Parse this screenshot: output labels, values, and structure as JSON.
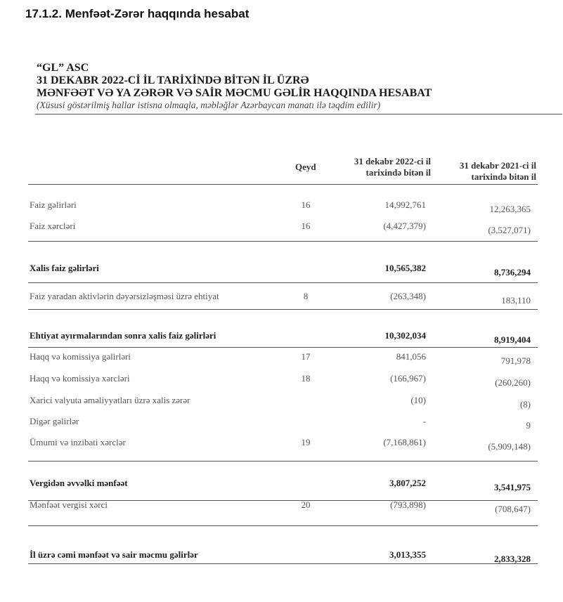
{
  "section_title": "17.1.2. Menfəət-Zərər haqqında hesabat",
  "company": "“GL” ASC",
  "heading_line1": "31 DEKABR 2022-Cİ İL TARİXİNDƏ BİTƏN İL ÜZRƏ",
  "heading_line2": "MƏNFƏƏT VƏ YA ZƏRƏR VƏ SAİR MƏCMU GƏLİR HAQQINDA HESABAT",
  "subtitle": "(Xüsusi göstərilmiş hallar istisna olmaqla, məbləğlər Azərbaycan manatı ilə təqdim edilir)",
  "columns": {
    "note": "Qeyd",
    "y2022_line1": "31 dekabr 2022-ci il",
    "y2022_line2": "tarixində bitən il",
    "y2021_line1": "31 dekabr 2021-ci il",
    "y2021_line2": "tarixində bitən il"
  },
  "rows": [
    {
      "label": "Faiz gəlirləri",
      "note": "16",
      "v2022": "14,992,761",
      "v2021": "12,263,365",
      "bold": false
    },
    {
      "label": "Faiz xərcləri",
      "note": "16",
      "v2022": "(4,427,379)",
      "v2021": "(3,527,071)",
      "bold": false
    },
    {
      "label": "Xalis faiz gəlirləri",
      "note": "",
      "v2022": "10,565,382",
      "v2021": "8,736,294",
      "bold": true
    },
    {
      "label": "Faiz yaradan aktivlərin dəyərsizləşməsi üzrə ehtiyat",
      "note": "8",
      "v2022": "(263,348)",
      "v2021": "183,110",
      "bold": false
    },
    {
      "label": "Ehtiyat ayırmalarından sonra xalis faiz gəlirləri",
      "note": "",
      "v2022": "10,302,034",
      "v2021": "8,919,404",
      "bold": true
    },
    {
      "label": "Haqq və komissiya gəlirləri",
      "note": "17",
      "v2022": "841,056",
      "v2021": "791,978",
      "bold": false
    },
    {
      "label": "Haqq və komissiya xərcləri",
      "note": "18",
      "v2022": "(166,967)",
      "v2021": "(260,260)",
      "bold": false
    },
    {
      "label": "Xarici valyuta əməliyyatları üzrə xalis zərər",
      "note": "",
      "v2022": "(10)",
      "v2021": "(8)",
      "bold": false
    },
    {
      "label": "Digər gəlirlər",
      "note": "",
      "v2022": "-",
      "v2021": "9",
      "bold": false
    },
    {
      "label": "Ümumi və inzibati xərclər",
      "note": "19",
      "v2022": "(7,168,861)",
      "v2021": "(5,909,148)",
      "bold": false
    },
    {
      "label": "Vergidən əvvəlki mənfəət",
      "note": "",
      "v2022": "3,807,252",
      "v2021": "3,541,975",
      "bold": true
    },
    {
      "label": "Mənfəət vergisi xərci",
      "note": "20",
      "v2022": "(793,898)",
      "v2021": "(708,647)",
      "bold": false
    },
    {
      "label": "İl üzrə cəmi mənfəət və sair məcmu gəlirlər",
      "note": "",
      "v2022": "3,013,355",
      "v2021": "2,833,328",
      "bold": true
    }
  ]
}
